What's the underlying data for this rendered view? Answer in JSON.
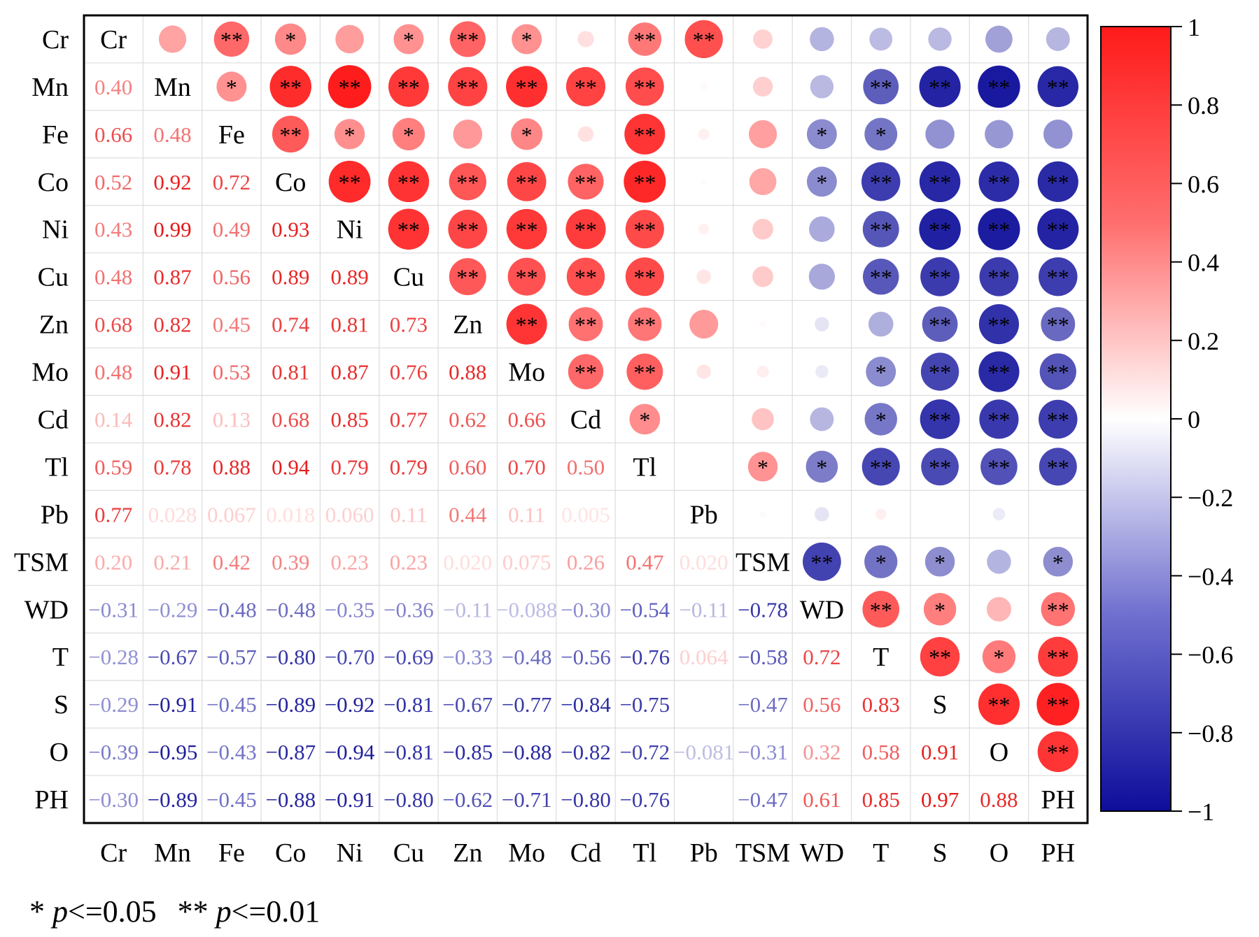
{
  "chart_data": {
    "type": "heatmap",
    "title": "",
    "variables": [
      "Cr",
      "Mn",
      "Fe",
      "Co",
      "Ni",
      "Cu",
      "Zn",
      "Mo",
      "Cd",
      "Tl",
      "Pb",
      "TSM",
      "WD",
      "T",
      "S",
      "O",
      "PH"
    ],
    "value_labels": [
      [
        "Cr",
        "",
        "",
        "",
        "",
        "",
        "",
        "",
        "",
        "",
        "",
        "",
        "",
        "",
        "",
        "",
        ""
      ],
      [
        "0.40",
        "Mn",
        "",
        "",
        "",
        "",
        "",
        "",
        "",
        "",
        "",
        "",
        "",
        "",
        "",
        "",
        ""
      ],
      [
        "0.66",
        "0.48",
        "Fe",
        "",
        "",
        "",
        "",
        "",
        "",
        "",
        "",
        "",
        "",
        "",
        "",
        "",
        ""
      ],
      [
        "0.52",
        "0.92",
        "0.72",
        "Co",
        "",
        "",
        "",
        "",
        "",
        "",
        "",
        "",
        "",
        "",
        "",
        "",
        ""
      ],
      [
        "0.43",
        "0.99",
        "0.49",
        "0.93",
        "Ni",
        "",
        "",
        "",
        "",
        "",
        "",
        "",
        "",
        "",
        "",
        "",
        ""
      ],
      [
        "0.48",
        "0.87",
        "0.56",
        "0.89",
        "0.89",
        "Cu",
        "",
        "",
        "",
        "",
        "",
        "",
        "",
        "",
        "",
        "",
        ""
      ],
      [
        "0.68",
        "0.82",
        "0.45",
        "0.74",
        "0.81",
        "0.73",
        "Zn",
        "",
        "",
        "",
        "",
        "",
        "",
        "",
        "",
        "",
        ""
      ],
      [
        "0.48",
        "0.91",
        "0.53",
        "0.81",
        "0.87",
        "0.76",
        "0.88",
        "Mo",
        "",
        "",
        "",
        "",
        "",
        "",
        "",
        "",
        ""
      ],
      [
        "0.14",
        "0.82",
        "0.13",
        "0.68",
        "0.85",
        "0.77",
        "0.62",
        "0.66",
        "Cd",
        "",
        "",
        "",
        "",
        "",
        "",
        "",
        ""
      ],
      [
        "0.59",
        "0.78",
        "0.88",
        "0.94",
        "0.79",
        "0.79",
        "0.60",
        "0.70",
        "0.50",
        "Tl",
        "",
        "",
        "",
        "",
        "",
        "",
        ""
      ],
      [
        "0.77",
        "0.028",
        "0.067",
        "0.018",
        "0.060",
        "0.11",
        "0.44",
        "0.11",
        "0.005",
        "",
        "Pb",
        "",
        "",
        "",
        "",
        "",
        ""
      ],
      [
        "0.20",
        "0.21",
        "0.42",
        "0.39",
        "0.23",
        "0.23",
        "0.020",
        "0.075",
        "0.26",
        "0.47",
        "0.020",
        "TSM",
        "",
        "",
        "",
        "",
        ""
      ],
      [
        "−0.31",
        "−0.29",
        "−0.48",
        "−0.48",
        "−0.35",
        "−0.36",
        "−0.11",
        "−0.088",
        "−0.30",
        "−0.54",
        "−0.11",
        "−0.78",
        "WD",
        "",
        "",
        "",
        ""
      ],
      [
        "−0.28",
        "−0.67",
        "−0.57",
        "−0.80",
        "−0.70",
        "−0.69",
        "−0.33",
        "−0.48",
        "−0.56",
        "−0.76",
        "0.064",
        "−0.58",
        "0.72",
        "T",
        "",
        "",
        ""
      ],
      [
        "−0.29",
        "−0.91",
        "−0.45",
        "−0.89",
        "−0.92",
        "−0.81",
        "−0.67",
        "−0.77",
        "−0.84",
        "−0.75",
        "",
        "−0.47",
        "0.56",
        "0.83",
        "S",
        "",
        ""
      ],
      [
        "−0.39",
        "−0.95",
        "−0.43",
        "−0.87",
        "−0.94",
        "−0.81",
        "−0.85",
        "−0.88",
        "−0.82",
        "−0.72",
        "−0.081",
        "−0.31",
        "0.32",
        "0.58",
        "0.91",
        "O",
        ""
      ],
      [
        "−0.30",
        "−0.89",
        "−0.45",
        "−0.88",
        "−0.91",
        "−0.80",
        "−0.62",
        "−0.71",
        "−0.80",
        "−0.76",
        "",
        "−0.47",
        "0.61",
        "0.85",
        "0.97",
        "0.88",
        "PH"
      ]
    ],
    "hidden_values": [
      [
        16,
        10
      ],
      [
        14,
        10
      ]
    ],
    "hidden_value_estimates": {
      "16,10": 0.0,
      "14,10": 0.0
    },
    "significance": {
      "0": [
        "",
        "",
        "**",
        "*",
        "",
        "*",
        "**",
        "*",
        "",
        "**",
        "**",
        "",
        "",
        "",
        "",
        "",
        ""
      ],
      "1": [
        "",
        "",
        "*",
        "**",
        "**",
        "**",
        "**",
        "**",
        "**",
        "**",
        "",
        "",
        "",
        "**",
        "**",
        "**",
        "**"
      ],
      "2": [
        "",
        "",
        "",
        "**",
        "*",
        "*",
        "",
        "*",
        "",
        "**",
        "",
        "",
        "*",
        "*",
        "",
        "",
        ""
      ],
      "3": [
        "",
        "",
        "",
        "",
        "**",
        "**",
        "**",
        "**",
        "**",
        "**",
        "",
        "",
        "*",
        "**",
        "**",
        "**",
        "**"
      ],
      "4": [
        "",
        "",
        "",
        "",
        "",
        "**",
        "**",
        "**",
        "**",
        "**",
        "",
        "",
        "",
        "**",
        "**",
        "**",
        "**"
      ],
      "5": [
        "",
        "",
        "",
        "",
        "",
        "",
        "**",
        "**",
        "**",
        "**",
        "",
        "",
        "",
        "**",
        "**",
        "**",
        "**"
      ],
      "6": [
        "",
        "",
        "",
        "",
        "",
        "",
        "",
        "**",
        "**",
        "**",
        "",
        "",
        "",
        "",
        "**",
        "**",
        "**"
      ],
      "7": [
        "",
        "",
        "",
        "",
        "",
        "",
        "",
        "",
        "**",
        "**",
        "",
        "",
        "",
        "*",
        "**",
        "**",
        "**"
      ],
      "8": [
        "",
        "",
        "",
        "",
        "",
        "",
        "",
        "",
        "",
        "*",
        "",
        "",
        "",
        "*",
        "**",
        "**",
        "**"
      ],
      "9": [
        "",
        "",
        "",
        "",
        "",
        "",
        "",
        "",
        "",
        "",
        "",
        "*",
        "*",
        "**",
        "**",
        "**",
        "**"
      ],
      "10": [
        "",
        "",
        "",
        "",
        "",
        "",
        "",
        "",
        "",
        "",
        "",
        "",
        "",
        "",
        "",
        "",
        ""
      ],
      "11": [
        "",
        "",
        "",
        "",
        "",
        "",
        "",
        "",
        "",
        "",
        "",
        "",
        "**",
        "*",
        "*",
        "",
        "*"
      ],
      "12": [
        "",
        "",
        "",
        "",
        "",
        "",
        "",
        "",
        "",
        "",
        "",
        "",
        "",
        "**",
        "*",
        "",
        "**"
      ],
      "13": [
        "",
        "",
        "",
        "",
        "",
        "",
        "",
        "",
        "",
        "",
        "",
        "",
        "",
        "",
        "**",
        "*",
        "**"
      ],
      "14": [
        "",
        "",
        "",
        "",
        "",
        "",
        "",
        "",
        "",
        "",
        "",
        "",
        "",
        "",
        "",
        "**",
        "**"
      ],
      "15": [
        "",
        "",
        "",
        "",
        "",
        "",
        "",
        "",
        "",
        "",
        "",
        "",
        "",
        "",
        "",
        "",
        "**"
      ],
      "16": [
        "",
        "",
        "",
        "",
        "",
        "",
        "",
        "",
        "",
        "",
        "",
        "",
        "",
        "",
        "",
        "",
        ""
      ]
    },
    "colorbar": {
      "range": [
        -1,
        1
      ],
      "ticks": [
        "1",
        "0.8",
        "0.6",
        "0.4",
        "0.2",
        "0",
        "−0.2",
        "−0.4",
        "−0.6",
        "−0.8",
        "−1"
      ],
      "colors": {
        "negative": "#0d0d9b",
        "zero": "#ffffff",
        "positive": "#ff1a1a"
      }
    },
    "legend_note": {
      "single": "* ",
      "single_p": "p",
      "single_rest": "<=0.05",
      "double": "** ",
      "double_p": "p",
      "double_rest": "<=0.01"
    },
    "layout_hint": "upper triangle shows circles sized by |r|, lower triangle shows r values, diagonal shows variable names"
  }
}
